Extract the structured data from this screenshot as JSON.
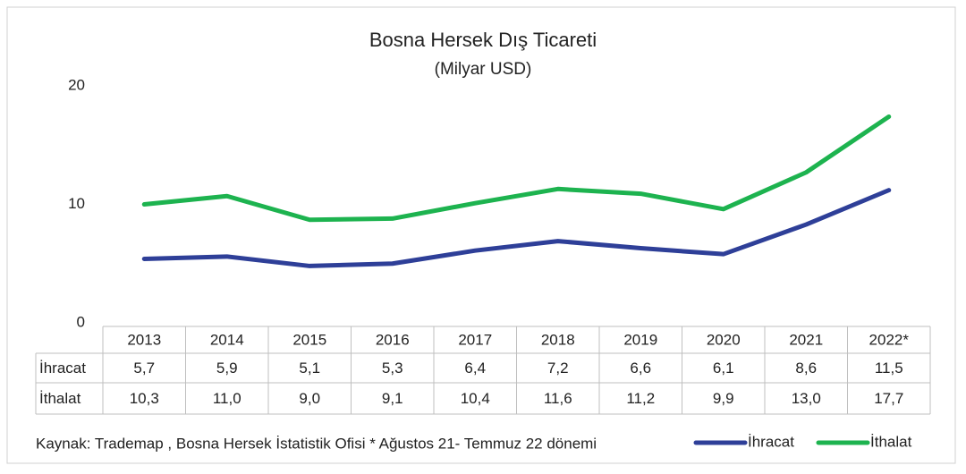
{
  "chart_data": {
    "type": "line",
    "title": "Bosna Hersek Dış Ticareti",
    "subtitle": "(Milyar USD)",
    "categories": [
      "2013",
      "2014",
      "2015",
      "2016",
      "2017",
      "2018",
      "2019",
      "2020",
      "2021",
      "2022*"
    ],
    "series": [
      {
        "name": "İhracat",
        "color": "#2e3f98",
        "values": [
          5.7,
          5.9,
          5.1,
          5.3,
          6.4,
          7.2,
          6.6,
          6.1,
          8.6,
          11.5
        ],
        "value_labels": [
          "5,7",
          "5,9",
          "5,1",
          "5,3",
          "6,4",
          "7,2",
          "6,6",
          "6,1",
          "8,6",
          "11,5"
        ]
      },
      {
        "name": "İthalat",
        "color": "#1db34f",
        "values": [
          10.3,
          11.0,
          9.0,
          9.1,
          10.4,
          11.6,
          11.2,
          9.9,
          13.0,
          17.7
        ],
        "value_labels": [
          "10,3",
          "11,0",
          "9,0",
          "9,1",
          "10,4",
          "11,6",
          "11,2",
          "9,9",
          "13,0",
          "17,7"
        ]
      }
    ],
    "ylim": [
      0,
      20
    ],
    "yticks": [
      0,
      10,
      20
    ],
    "grid": false,
    "legend": "bottom-right",
    "footnote": "Kaynak: Trademap , Bosna Hersek İstatistik Ofisi * Ağustos 21- Temmuz 22 dönemi"
  }
}
